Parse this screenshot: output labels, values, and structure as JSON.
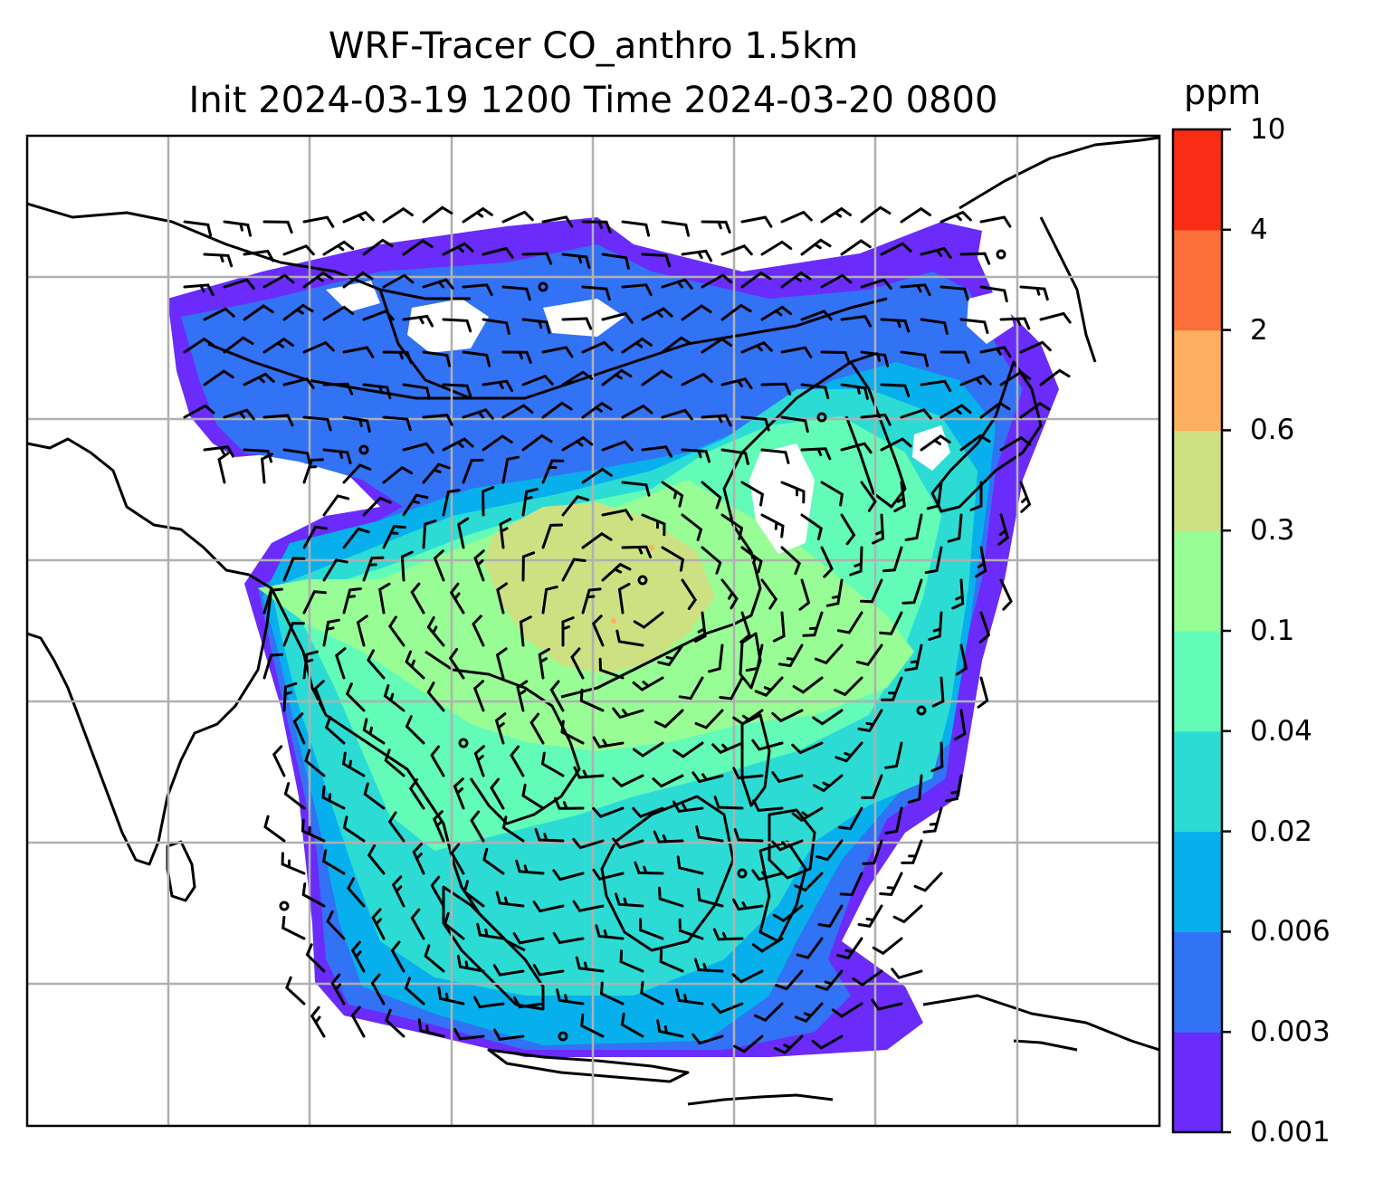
{
  "title": {
    "line1": "WRF-Tracer CO_anthro 1.5km",
    "line2": "Init 2024-03-19 1200 Time 2024-03-20 0800"
  },
  "colorbar": {
    "unit": "ppm",
    "levels": [
      "0.001",
      "0.003",
      "0.006",
      "0.02",
      "0.04",
      "0.1",
      "0.3",
      "0.6",
      "2",
      "4",
      "10"
    ],
    "colors": [
      "#6a2bfb",
      "#3272f5",
      "#07b0ec",
      "#2cdcd4",
      "#62fbb8",
      "#97fd94",
      "#cde183",
      "#fdaf60",
      "#fc6e3a",
      "#fa2c16"
    ]
  },
  "map": {
    "gridlines": true,
    "no_data_color": "#ffffff",
    "coastline_color": "#000000",
    "gridline_color": "#b0b0b0"
  }
}
